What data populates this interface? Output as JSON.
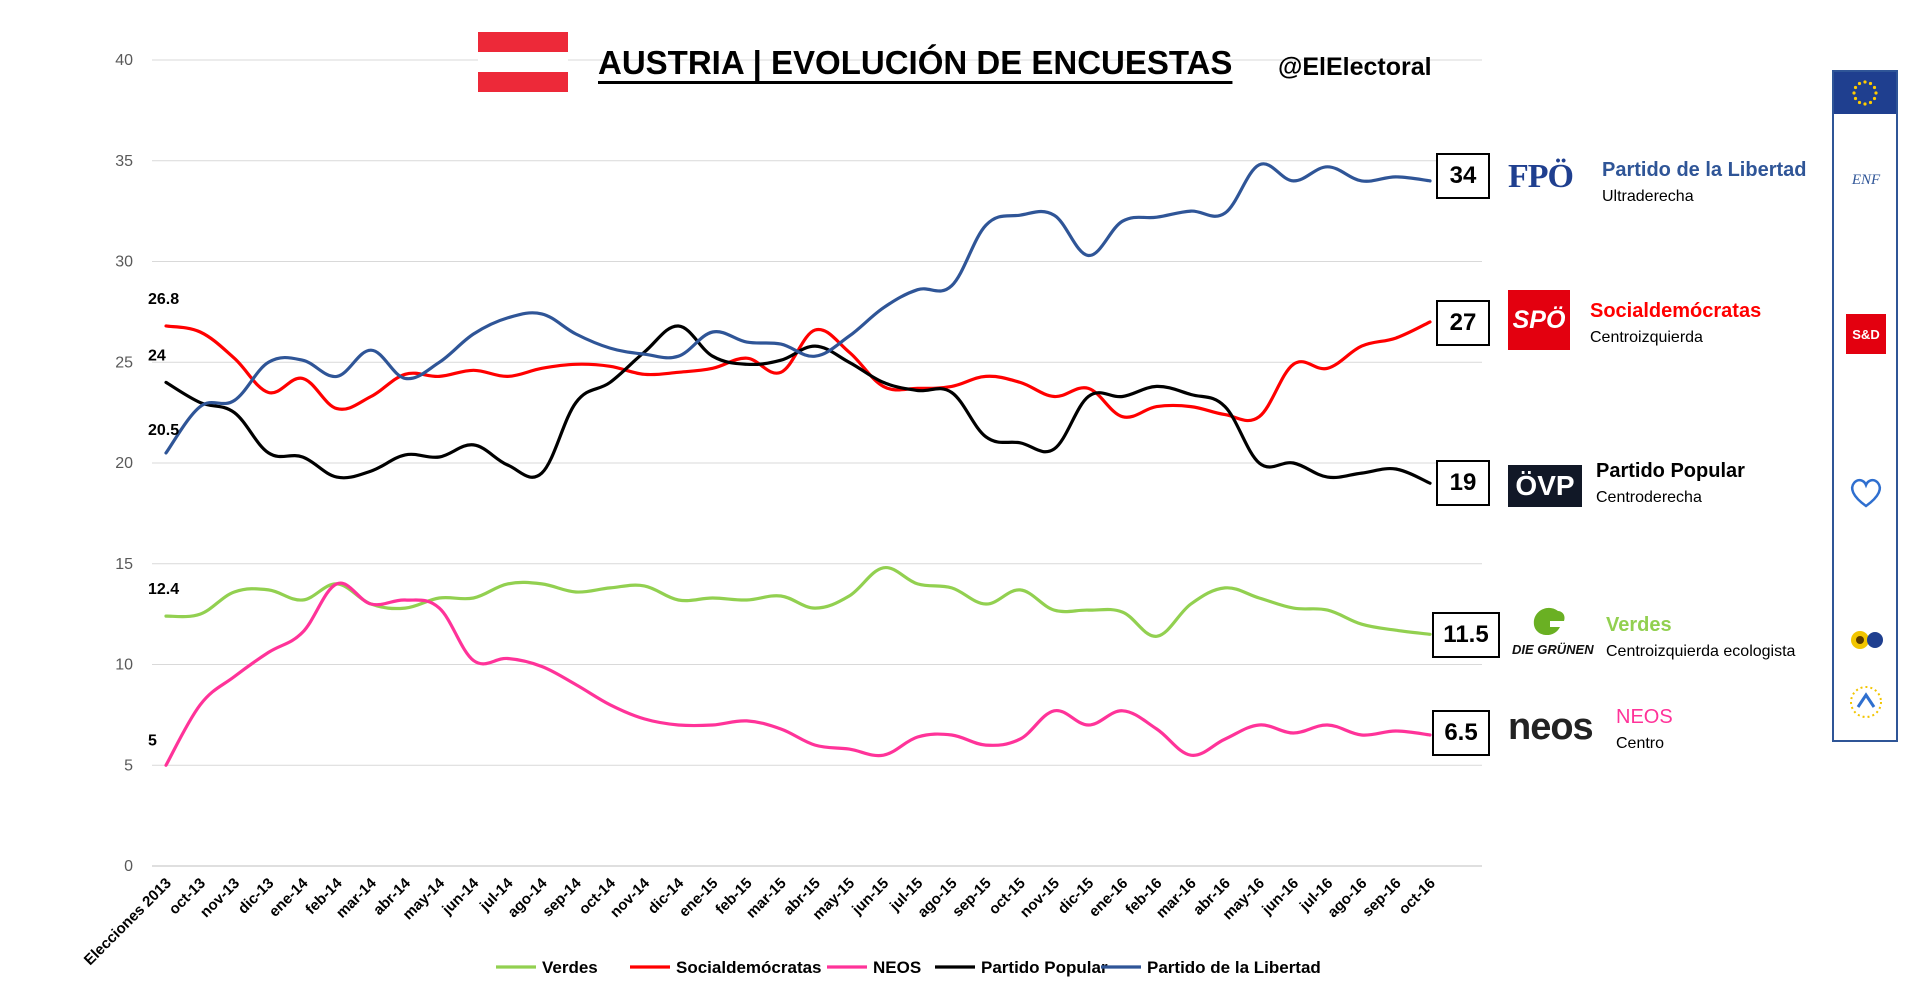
{
  "header": {
    "title": "AUSTRIA | EVOLUCIÓN DE ENCUESTAS",
    "handle": "@ElElectoral"
  },
  "flag_colors": [
    "#ed2939",
    "#ffffff",
    "#ed2939"
  ],
  "parties": [
    {
      "key": "fpo",
      "logo": "FPÖ",
      "name": "Partido de la Libertad",
      "sub": "Ultraderecha",
      "current": "34",
      "color": "#2f5597"
    },
    {
      "key": "spo",
      "logo": "SPÖ",
      "name": "Socialdemócratas",
      "sub": "Centroizquierda",
      "current": "27",
      "color": "#ff0000"
    },
    {
      "key": "ovp",
      "logo": "ÖVP",
      "name": "Partido Popular",
      "sub": "Centroderecha",
      "current": "19",
      "color": "#000000"
    },
    {
      "key": "gru",
      "logo": "DIE GRÜNEN",
      "name": "Verdes",
      "sub": "Centroizquierda ecologista",
      "current": "11.5",
      "color": "#92d050"
    },
    {
      "key": "neos",
      "logo": "neos",
      "name": "NEOS",
      "sub": "Centro",
      "current": "6.5",
      "color": "#ff3399"
    }
  ],
  "sidebar_icons": [
    "eu-flag-icon",
    "enf-logo-icon",
    "s-and-d-logo-icon",
    "epp-heart-icon",
    "greens-efa-logo-icon",
    "alde-logo-icon"
  ],
  "sidebar_labels": {
    "enf": "ENF",
    "sd": "S&D"
  },
  "chart_data": {
    "type": "line",
    "categories": [
      "Elecciones 2013",
      "oct-13",
      "nov-13",
      "dic-13",
      "ene-14",
      "feb-14",
      "mar-14",
      "abr-14",
      "may-14",
      "jun-14",
      "jul-14",
      "ago-14",
      "sep-14",
      "oct-14",
      "nov-14",
      "dic-14",
      "ene-15",
      "feb-15",
      "mar-15",
      "abr-15",
      "may-15",
      "jun-15",
      "jul-15",
      "ago-15",
      "sep-15",
      "oct-15",
      "nov-15",
      "dic-15",
      "ene-16",
      "feb-16",
      "mar-16",
      "abr-16",
      "may-16",
      "jun-16",
      "jul-16",
      "ago-16",
      "sep-16",
      "oct-16"
    ],
    "ylim": [
      0,
      40
    ],
    "yticks": [
      0,
      5,
      10,
      15,
      20,
      25,
      30,
      35,
      40
    ],
    "grid": true,
    "legend_position": "bottom",
    "series": [
      {
        "name": "Verdes",
        "color": "#92d050",
        "start_label": "12.4",
        "values": [
          12.4,
          12.5,
          13.6,
          13.7,
          13.2,
          14.0,
          13.0,
          12.8,
          13.3,
          13.3,
          14.0,
          14.0,
          13.6,
          13.8,
          13.9,
          13.2,
          13.3,
          13.2,
          13.4,
          12.8,
          13.4,
          14.8,
          14.0,
          13.8,
          13.0,
          13.7,
          12.7,
          12.7,
          12.6,
          11.4,
          13.0,
          13.8,
          13.3,
          12.8,
          12.7,
          12.0,
          11.7,
          11.5
        ]
      },
      {
        "name": "Socialdemócratas",
        "color": "#ff0000",
        "start_label": "26.8",
        "values": [
          26.8,
          26.5,
          25.2,
          23.5,
          24.2,
          22.7,
          23.3,
          24.4,
          24.3,
          24.6,
          24.3,
          24.7,
          24.9,
          24.8,
          24.4,
          24.5,
          24.7,
          25.2,
          24.5,
          26.6,
          25.5,
          23.8,
          23.7,
          23.8,
          24.3,
          24.0,
          23.3,
          23.7,
          22.3,
          22.8,
          22.8,
          22.4,
          22.3,
          24.9,
          24.7,
          25.8,
          26.2,
          27.0
        ]
      },
      {
        "name": "NEOS",
        "color": "#ff3399",
        "start_label": "5",
        "values": [
          5.0,
          8.0,
          9.4,
          10.6,
          11.6,
          14.0,
          13.0,
          13.2,
          12.8,
          10.2,
          10.3,
          9.9,
          9.0,
          8.0,
          7.3,
          7.0,
          7.0,
          7.2,
          6.8,
          6.0,
          5.8,
          5.5,
          6.4,
          6.5,
          6.0,
          6.3,
          7.7,
          7.0,
          7.7,
          6.8,
          5.5,
          6.3,
          7.0,
          6.6,
          7.0,
          6.5,
          6.7,
          6.5
        ]
      },
      {
        "name": "Partido Popular",
        "color": "#000000",
        "start_label": "24",
        "values": [
          24.0,
          23.0,
          22.5,
          20.5,
          20.3,
          19.3,
          19.6,
          20.4,
          20.3,
          20.9,
          19.9,
          19.5,
          23.0,
          24.0,
          25.5,
          26.8,
          25.3,
          24.9,
          25.1,
          25.8,
          25.0,
          24.0,
          23.6,
          23.5,
          21.3,
          21.0,
          20.7,
          23.3,
          23.3,
          23.8,
          23.4,
          22.8,
          20.0,
          20.0,
          19.3,
          19.5,
          19.7,
          19.0
        ]
      },
      {
        "name": "Partido de la Libertad",
        "color": "#2f5597",
        "start_label": "20.5",
        "values": [
          20.5,
          22.8,
          23.1,
          25.0,
          25.1,
          24.3,
          25.6,
          24.2,
          25.0,
          26.4,
          27.2,
          27.4,
          26.4,
          25.7,
          25.4,
          25.3,
          26.5,
          26.0,
          25.9,
          25.3,
          26.3,
          27.7,
          28.6,
          28.8,
          31.8,
          32.3,
          32.3,
          30.3,
          32.0,
          32.2,
          32.5,
          32.4,
          34.8,
          34.0,
          34.7,
          34.0,
          34.2,
          34.0
        ]
      }
    ]
  }
}
